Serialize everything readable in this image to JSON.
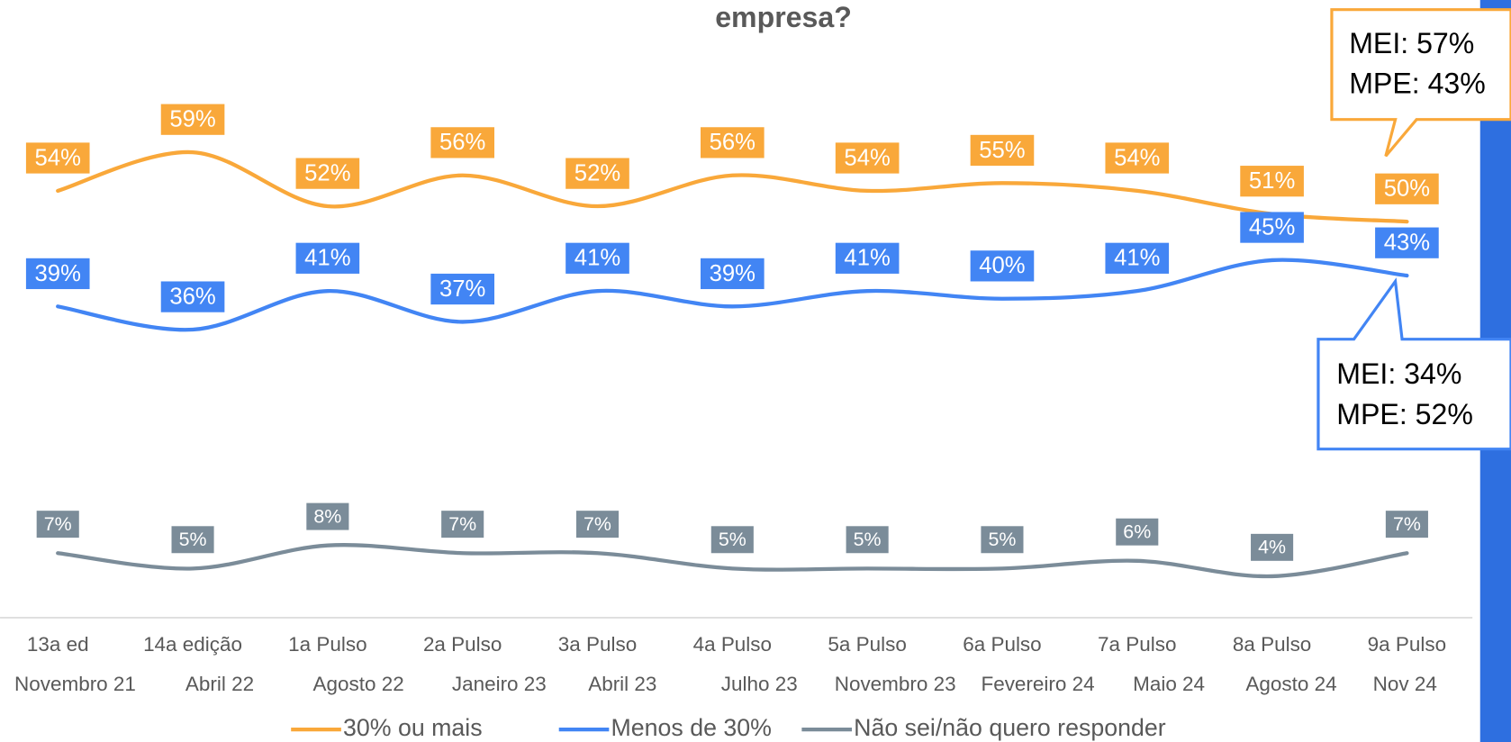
{
  "chart_data": {
    "type": "line",
    "title": "empresa?",
    "categories": [
      [
        "13a ed",
        "Novembro 21"
      ],
      [
        "14a edição",
        "Abril 22"
      ],
      [
        "1a Pulso",
        "Agosto 22"
      ],
      [
        "2a Pulso",
        "Janeiro 23"
      ],
      [
        "3a Pulso",
        "Abril 23"
      ],
      [
        "4a Pulso",
        "Julho 23"
      ],
      [
        "5a Pulso",
        "Novembro 23"
      ],
      [
        "6a Pulso",
        "Fevereiro 24"
      ],
      [
        "7a Pulso",
        "Maio 24"
      ],
      [
        "8a Pulso",
        "Agosto 24"
      ],
      [
        "9a Pulso",
        "Nov 24"
      ]
    ],
    "series": [
      {
        "name": "30% ou mais",
        "color": "#f9a83a",
        "values": [
          54,
          59,
          52,
          56,
          52,
          56,
          54,
          55,
          54,
          51,
          50
        ],
        "value_labels": [
          "54%",
          "59%",
          "52%",
          "56%",
          "52%",
          "56%",
          "54%",
          "55%",
          "54%",
          "51%",
          "50%"
        ]
      },
      {
        "name": "Menos de 30%",
        "color": "#4285f4",
        "values": [
          39,
          36,
          41,
          37,
          41,
          39,
          41,
          40,
          41,
          45,
          43
        ],
        "value_labels": [
          "39%",
          "36%",
          "41%",
          "37%",
          "41%",
          "39%",
          "41%",
          "40%",
          "41%",
          "45%",
          "43%"
        ]
      },
      {
        "name": "Não sei/não quero responder",
        "color": "#7b8c99",
        "values": [
          7,
          5,
          8,
          7,
          7,
          5,
          5,
          5,
          6,
          4,
          7
        ],
        "value_labels": [
          "7%",
          "5%",
          "8%",
          "7%",
          "7%",
          "5%",
          "5%",
          "5%",
          "6%",
          "4%",
          "7%"
        ]
      }
    ],
    "ylim": [
      0,
      75
    ],
    "annotations": [
      [
        "MEI: 57%",
        "MPE: 43%"
      ],
      [
        "MEI: 34%",
        "MPE: 52%"
      ]
    ]
  }
}
